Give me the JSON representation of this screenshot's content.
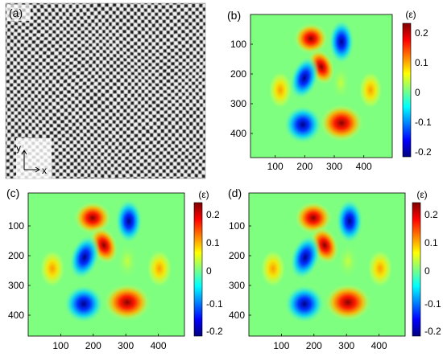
{
  "figure": {
    "panels": [
      {
        "id": "a",
        "label": "(a)",
        "type": "image",
        "content": "distorted checkerboard / grid pattern",
        "inset_axes": {
          "y_label": "y",
          "x_label": "x"
        }
      },
      {
        "id": "b",
        "label": "(b)",
        "type": "heatmap",
        "x_ticks": [
          "100",
          "200",
          "300",
          "400"
        ],
        "y_ticks": [
          "100",
          "200",
          "300",
          "400"
        ],
        "colorbar": {
          "label": "(ε)",
          "ticks": [
            "0.2",
            "0.1",
            "0",
            "-0.1",
            "-0.2"
          ]
        }
      },
      {
        "id": "c",
        "label": "(c)",
        "type": "heatmap",
        "x_ticks": [
          "100",
          "200",
          "300",
          "400"
        ],
        "y_ticks": [
          "100",
          "200",
          "300",
          "400"
        ],
        "colorbar": {
          "label": "(ε)",
          "ticks": [
            "0.2",
            "0.1",
            "0",
            "-0.1",
            "-0.2"
          ]
        }
      },
      {
        "id": "d",
        "label": "(d)",
        "type": "heatmap",
        "x_ticks": [
          "100",
          "200",
          "300",
          "400"
        ],
        "y_ticks": [
          "100",
          "200",
          "300",
          "400"
        ],
        "colorbar": {
          "label": "(ε)",
          "ticks": [
            "0.2",
            "0.1",
            "0",
            "-0.1",
            "-0.2"
          ]
        }
      }
    ],
    "colormap": "jet",
    "chart_data": [
      {
        "type": "heatmap",
        "panel": "b",
        "x_range": [
          0,
          480
        ],
        "y_range": [
          0,
          480
        ],
        "y_axis": "reversed",
        "value_range": [
          -0.22,
          0.22
        ],
        "features": [
          {
            "x": 200,
            "y": 80,
            "value": 0.22
          },
          {
            "x": 235,
            "y": 185,
            "value": 0.2
          },
          {
            "x": 310,
            "y": 95,
            "value": -0.2
          },
          {
            "x": 180,
            "y": 225,
            "value": -0.2
          },
          {
            "x": 175,
            "y": 385,
            "value": -0.22
          },
          {
            "x": 310,
            "y": 380,
            "value": 0.22
          },
          {
            "x": 90,
            "y": 260,
            "value": 0.08
          },
          {
            "x": 415,
            "y": 260,
            "value": 0.1
          },
          {
            "x": 305,
            "y": 230,
            "value": 0.03
          }
        ]
      },
      {
        "type": "heatmap",
        "panel": "c",
        "x_range": [
          0,
          480
        ],
        "y_range": [
          0,
          480
        ],
        "y_axis": "reversed",
        "value_range": [
          -0.22,
          0.25
        ],
        "features": [
          {
            "x": 200,
            "y": 85,
            "value": 0.24
          },
          {
            "x": 235,
            "y": 185,
            "value": 0.22
          },
          {
            "x": 310,
            "y": 95,
            "value": -0.2
          },
          {
            "x": 180,
            "y": 225,
            "value": -0.2
          },
          {
            "x": 175,
            "y": 380,
            "value": -0.22
          },
          {
            "x": 310,
            "y": 375,
            "value": 0.24
          },
          {
            "x": 75,
            "y": 255,
            "value": 0.09
          },
          {
            "x": 425,
            "y": 255,
            "value": 0.1
          },
          {
            "x": 305,
            "y": 230,
            "value": 0.03
          }
        ]
      },
      {
        "type": "heatmap",
        "panel": "d",
        "x_range": [
          0,
          480
        ],
        "y_range": [
          0,
          480
        ],
        "y_axis": "reversed",
        "value_range": [
          -0.22,
          0.25
        ],
        "features": [
          {
            "x": 200,
            "y": 85,
            "value": 0.24
          },
          {
            "x": 235,
            "y": 185,
            "value": 0.22
          },
          {
            "x": 310,
            "y": 95,
            "value": -0.2
          },
          {
            "x": 180,
            "y": 225,
            "value": -0.2
          },
          {
            "x": 175,
            "y": 380,
            "value": -0.22
          },
          {
            "x": 310,
            "y": 375,
            "value": 0.24
          },
          {
            "x": 75,
            "y": 255,
            "value": 0.09
          },
          {
            "x": 425,
            "y": 255,
            "value": 0.1
          },
          {
            "x": 305,
            "y": 230,
            "value": 0.03
          }
        ]
      }
    ]
  }
}
